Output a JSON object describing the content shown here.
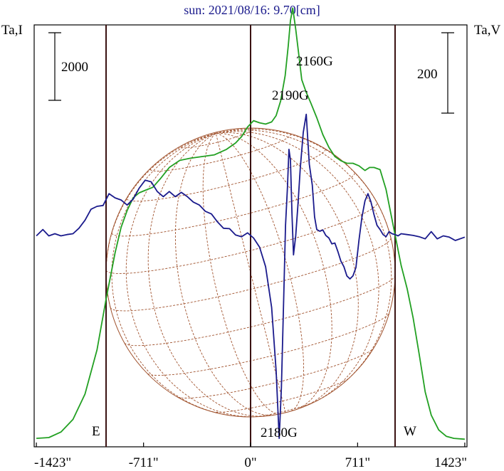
{
  "chart_data": {
    "type": "line",
    "title": "sun: 2021/08/16: 9.70[cm]",
    "left_axis_label": "Ta,I",
    "right_axis_label": "Ta,V",
    "scale_bars": {
      "left": "2000",
      "right": "200"
    },
    "x_ticks": [
      {
        "value": -1423,
        "label": "-1423\""
      },
      {
        "value": -711,
        "label": "-711\""
      },
      {
        "value": 0,
        "label": "0\""
      },
      {
        "value": 711,
        "label": "711\""
      },
      {
        "value": 1423,
        "label": "1423\""
      }
    ],
    "xlim": [
      -1423,
      1423
    ],
    "limb_markers": [
      {
        "x": -960,
        "label": "E"
      },
      {
        "x": 0,
        "label": ""
      },
      {
        "x": 960,
        "label": "W"
      }
    ],
    "annotations": [
      {
        "label": "2160G",
        "x": 370,
        "y": 94
      },
      {
        "label": "2190G",
        "x": 255,
        "y": 75
      },
      {
        "label": "2180G",
        "x": 215,
        "y": 2
      }
    ],
    "series": [
      {
        "key": "stokes_i",
        "color": "#22a022",
        "x": [
          -1423,
          -1340,
          -1260,
          -1180,
          -1100,
          -1020,
          -960,
          -900,
          -860,
          -820,
          -780,
          -740,
          -700,
          -650,
          -600,
          -540,
          -470,
          -400,
          -320,
          -240,
          -160,
          -100,
          -60,
          -20,
          20,
          60,
          100,
          140,
          170,
          200,
          230,
          250,
          265,
          280,
          300,
          320,
          340,
          370,
          400,
          440,
          480,
          520,
          560,
          600,
          640,
          680,
          720,
          760,
          790,
          820,
          860,
          900,
          950,
          1000,
          1040,
          1080,
          1120,
          1160,
          1200,
          1250,
          1300,
          1350,
          1423
        ],
        "y": [
          2,
          2.2,
          3.5,
          6.5,
          12.5,
          23,
          35,
          46,
          52,
          56,
          59,
          60.2,
          60.8,
          61.5,
          63.5,
          66.2,
          67.9,
          68.4,
          68.8,
          69.2,
          70.5,
          72,
          73.5,
          75.8,
          77.3,
          76.8,
          76.5,
          77,
          78.5,
          82,
          88,
          95,
          101,
          104,
          99,
          93,
          87,
          84,
          81.5,
          78,
          74,
          71,
          68.8,
          67.8,
          67.2,
          67.2,
          66.6,
          65.5,
          66.2,
          66.2,
          65.7,
          61,
          52,
          43,
          37.5,
          30.5,
          22,
          13,
          7.5,
          4,
          2.5,
          2,
          1.8
        ]
      },
      {
        "key": "stokes_v",
        "color": "#1a1a8c",
        "x": [
          -1423,
          -1380,
          -1340,
          -1300,
          -1260,
          -1220,
          -1180,
          -1140,
          -1100,
          -1060,
          -1020,
          -980,
          -940,
          -900,
          -860,
          -820,
          -780,
          -740,
          -700,
          -660,
          -620,
          -580,
          -540,
          -500,
          -460,
          -420,
          -380,
          -340,
          -300,
          -260,
          -220,
          -180,
          -140,
          -100,
          -60,
          -20,
          20,
          60,
          100,
          140,
          170,
          190,
          205,
          220,
          232,
          245,
          255,
          265,
          275,
          285,
          300,
          315,
          330,
          350,
          370,
          390,
          410,
          425,
          440,
          460,
          480,
          500,
          520,
          540,
          560,
          580,
          600,
          620,
          640,
          660,
          680,
          700,
          720,
          740,
          760,
          780,
          800,
          820,
          840,
          860,
          880,
          900,
          920,
          940,
          960,
          980,
          1000,
          1040,
          1080,
          1120,
          1160,
          1200,
          1240,
          1280,
          1320,
          1360,
          1423
        ],
        "y": [
          50,
          51.5,
          50,
          50.5,
          50,
          50.3,
          50.5,
          51.8,
          53.7,
          56.3,
          57,
          57.2,
          60,
          59,
          58.5,
          57.3,
          58.7,
          61.3,
          63.2,
          62.8,
          60.5,
          59.3,
          60.5,
          59.3,
          60.3,
          59.3,
          58,
          57.3,
          55.8,
          55.2,
          53.3,
          51.8,
          51.7,
          50.2,
          49.8,
          50.7,
          49.5,
          47.3,
          42.7,
          33,
          18,
          2,
          14,
          35,
          52.5,
          61.5,
          70.5,
          68,
          55,
          45.5,
          50,
          57.5,
          66,
          74.5,
          78.8,
          67,
          62,
          54.5,
          51.5,
          51.1,
          51.4,
          50.1,
          49.5,
          48.1,
          48.3,
          46.3,
          44,
          42.7,
          40.5,
          39.8,
          40.5,
          42.5,
          49,
          54.5,
          58.3,
          60,
          58,
          55,
          52.5,
          51.5,
          50.3,
          49.8,
          51,
          50.5,
          50.3,
          50,
          50.5,
          50.3,
          50.1,
          49.8,
          49.3,
          51,
          49.3,
          50,
          49.7,
          48.9,
          49.7
        ]
      }
    ],
    "solar_disk": {
      "radius_arcsec": 960,
      "stroke_color": "#a0522d"
    }
  }
}
